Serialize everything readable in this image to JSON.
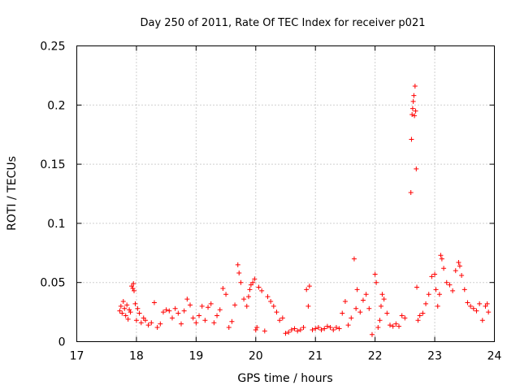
{
  "colors": {
    "series": "#ff0000",
    "grid": "#a0a0a0",
    "axis": "#000000",
    "background": "#ffffff"
  },
  "chart_data": {
    "type": "scatter",
    "title": "Day 250 of 2011, Rate Of TEC Index for receiver p021",
    "xlabel": "GPS time / hours",
    "ylabel": "ROTI / TECUs",
    "xlim": [
      17,
      24
    ],
    "ylim": [
      0,
      0.25
    ],
    "grid": true,
    "marker": "plus",
    "xticks": [
      17,
      18,
      19,
      20,
      21,
      22,
      23,
      24
    ],
    "xtick_labels": [
      "17",
      "18",
      "19",
      "20",
      "21",
      "22",
      "23",
      "24"
    ],
    "yticks": [
      0,
      0.05,
      0.1,
      0.15,
      0.2,
      0.25
    ],
    "ytick_labels": [
      "0",
      "0.05",
      "0.1",
      "0.15",
      "0.2",
      "0.25"
    ],
    "series": [
      {
        "name": "ROTI",
        "points": [
          [
            17.72,
            0.026
          ],
          [
            17.74,
            0.03
          ],
          [
            17.76,
            0.024
          ],
          [
            17.78,
            0.034
          ],
          [
            17.8,
            0.028
          ],
          [
            17.82,
            0.022
          ],
          [
            17.84,
            0.031
          ],
          [
            17.86,
            0.019
          ],
          [
            17.88,
            0.027
          ],
          [
            17.9,
            0.025
          ],
          [
            17.92,
            0.047
          ],
          [
            17.94,
            0.045
          ],
          [
            17.95,
            0.049
          ],
          [
            17.96,
            0.043
          ],
          [
            17.98,
            0.032
          ],
          [
            18.0,
            0.018
          ],
          [
            18.02,
            0.028
          ],
          [
            18.05,
            0.024
          ],
          [
            18.08,
            0.016
          ],
          [
            18.12,
            0.02
          ],
          [
            18.15,
            0.018
          ],
          [
            18.2,
            0.014
          ],
          [
            18.25,
            0.016
          ],
          [
            18.3,
            0.033
          ],
          [
            18.35,
            0.012
          ],
          [
            18.4,
            0.015
          ],
          [
            18.45,
            0.025
          ],
          [
            18.5,
            0.027
          ],
          [
            18.55,
            0.026
          ],
          [
            18.6,
            0.02
          ],
          [
            18.65,
            0.028
          ],
          [
            18.7,
            0.024
          ],
          [
            18.75,
            0.015
          ],
          [
            18.8,
            0.026
          ],
          [
            18.85,
            0.036
          ],
          [
            18.9,
            0.031
          ],
          [
            18.95,
            0.02
          ],
          [
            19.0,
            0.016
          ],
          [
            19.05,
            0.022
          ],
          [
            19.1,
            0.03
          ],
          [
            19.15,
            0.018
          ],
          [
            19.2,
            0.029
          ],
          [
            19.25,
            0.032
          ],
          [
            19.3,
            0.016
          ],
          [
            19.35,
            0.022
          ],
          [
            19.4,
            0.027
          ],
          [
            19.45,
            0.045
          ],
          [
            19.5,
            0.04
          ],
          [
            19.55,
            0.012
          ],
          [
            19.6,
            0.017
          ],
          [
            19.65,
            0.031
          ],
          [
            19.7,
            0.065
          ],
          [
            19.72,
            0.058
          ],
          [
            19.75,
            0.05
          ],
          [
            19.8,
            0.036
          ],
          [
            19.85,
            0.03
          ],
          [
            19.88,
            0.038
          ],
          [
            19.9,
            0.044
          ],
          [
            19.92,
            0.048
          ],
          [
            19.95,
            0.05
          ],
          [
            19.98,
            0.053
          ],
          [
            20.0,
            0.01
          ],
          [
            20.02,
            0.012
          ],
          [
            20.05,
            0.046
          ],
          [
            20.1,
            0.043
          ],
          [
            20.15,
            0.009
          ],
          [
            20.2,
            0.038
          ],
          [
            20.25,
            0.034
          ],
          [
            20.3,
            0.03
          ],
          [
            20.35,
            0.025
          ],
          [
            20.4,
            0.018
          ],
          [
            20.45,
            0.02
          ],
          [
            20.5,
            0.007
          ],
          [
            20.55,
            0.008
          ],
          [
            20.6,
            0.01
          ],
          [
            20.65,
            0.011
          ],
          [
            20.7,
            0.009
          ],
          [
            20.75,
            0.01
          ],
          [
            20.8,
            0.012
          ],
          [
            20.85,
            0.044
          ],
          [
            20.88,
            0.03
          ],
          [
            20.9,
            0.047
          ],
          [
            20.95,
            0.01
          ],
          [
            21.0,
            0.011
          ],
          [
            21.05,
            0.012
          ],
          [
            21.1,
            0.01
          ],
          [
            21.15,
            0.011
          ],
          [
            21.2,
            0.013
          ],
          [
            21.25,
            0.012
          ],
          [
            21.3,
            0.01
          ],
          [
            21.35,
            0.012
          ],
          [
            21.4,
            0.011
          ],
          [
            21.45,
            0.024
          ],
          [
            21.5,
            0.034
          ],
          [
            21.55,
            0.014
          ],
          [
            21.6,
            0.02
          ],
          [
            21.65,
            0.07
          ],
          [
            21.68,
            0.028
          ],
          [
            21.7,
            0.044
          ],
          [
            21.75,
            0.025
          ],
          [
            21.8,
            0.035
          ],
          [
            21.85,
            0.04
          ],
          [
            21.9,
            0.028
          ],
          [
            21.95,
            0.006
          ],
          [
            22.0,
            0.057
          ],
          [
            22.02,
            0.05
          ],
          [
            22.05,
            0.012
          ],
          [
            22.08,
            0.018
          ],
          [
            22.1,
            0.03
          ],
          [
            22.12,
            0.04
          ],
          [
            22.15,
            0.036
          ],
          [
            22.2,
            0.024
          ],
          [
            22.25,
            0.014
          ],
          [
            22.3,
            0.013
          ],
          [
            22.35,
            0.015
          ],
          [
            22.4,
            0.013
          ],
          [
            22.45,
            0.022
          ],
          [
            22.5,
            0.02
          ],
          [
            22.6,
            0.126
          ],
          [
            22.61,
            0.171
          ],
          [
            22.62,
            0.192
          ],
          [
            22.63,
            0.197
          ],
          [
            22.64,
            0.203
          ],
          [
            22.65,
            0.208
          ],
          [
            22.66,
            0.191
          ],
          [
            22.67,
            0.216
          ],
          [
            22.68,
            0.195
          ],
          [
            22.69,
            0.146
          ],
          [
            22.7,
            0.046
          ],
          [
            22.72,
            0.018
          ],
          [
            22.75,
            0.022
          ],
          [
            22.8,
            0.024
          ],
          [
            22.85,
            0.032
          ],
          [
            22.9,
            0.04
          ],
          [
            22.95,
            0.055
          ],
          [
            23.0,
            0.057
          ],
          [
            23.02,
            0.044
          ],
          [
            23.05,
            0.03
          ],
          [
            23.08,
            0.04
          ],
          [
            23.1,
            0.073
          ],
          [
            23.12,
            0.07
          ],
          [
            23.15,
            0.062
          ],
          [
            23.2,
            0.05
          ],
          [
            23.25,
            0.048
          ],
          [
            23.3,
            0.043
          ],
          [
            23.35,
            0.06
          ],
          [
            23.4,
            0.067
          ],
          [
            23.42,
            0.064
          ],
          [
            23.45,
            0.056
          ],
          [
            23.5,
            0.044
          ],
          [
            23.55,
            0.033
          ],
          [
            23.6,
            0.03
          ],
          [
            23.65,
            0.028
          ],
          [
            23.7,
            0.026
          ],
          [
            23.75,
            0.032
          ],
          [
            23.8,
            0.018
          ],
          [
            23.85,
            0.03
          ],
          [
            23.88,
            0.032
          ],
          [
            23.9,
            0.025
          ]
        ]
      }
    ]
  }
}
